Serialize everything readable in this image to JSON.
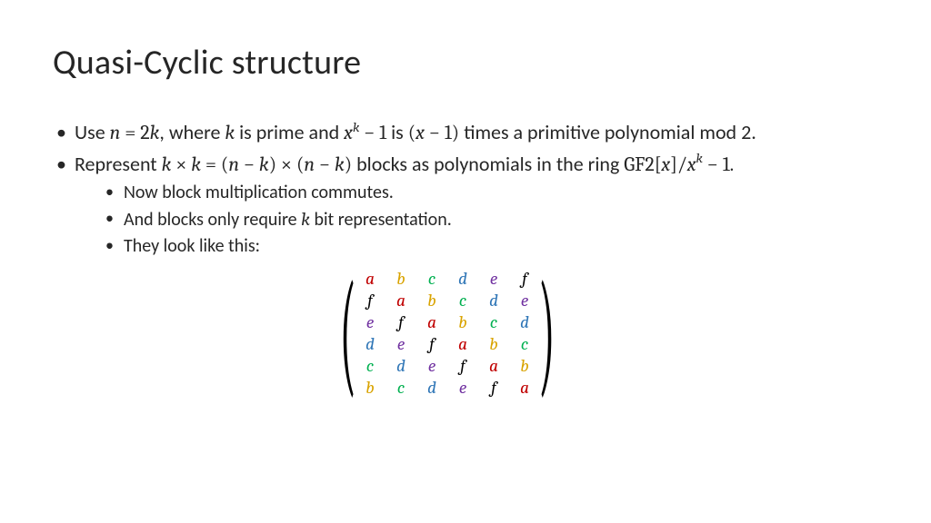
{
  "title": "Quasi-Cyclic structure",
  "bullet1": {
    "pre": "Use ",
    "n": "n",
    "eq": " = ",
    "two": " 2",
    "k": "k",
    "mid1": ", where ",
    "k2": "k",
    "mid2": " is prime and ",
    "x": "x",
    "supk": "k",
    "minus1": " − 1",
    "mid3": " is ",
    "lp": "(",
    "x2": "x",
    "minus1b": " − 1)",
    "tail": " times a primitive polynomial mod 2."
  },
  "bullet2": {
    "pre": "Represent ",
    "k": "k",
    "times": " × ",
    "k2": "k",
    "eq": " = (",
    "n": "n",
    "minus": " − ",
    "k3": "k",
    "mid": ") × (",
    "n2": "n",
    "minus2": " − ",
    "k4": "k",
    "rp": ")",
    "tail": " blocks as polynomials in the ring ",
    "gf2": "GF2[",
    "x": "x",
    "rb": "]/",
    "x2": "x",
    "supk": "k",
    "minus1": " − 1."
  },
  "sub1": "Now block multiplication commutes.",
  "sub2": {
    "pre": "And blocks only require ",
    "k": "k",
    "tail": " bit representation."
  },
  "sub3": "They look like this:",
  "matrix": {
    "letters": [
      "a",
      "b",
      "c",
      "d",
      "e",
      "f"
    ],
    "rows": [
      [
        "a",
        "b",
        "c",
        "d",
        "e",
        "f"
      ],
      [
        "f",
        "a",
        "b",
        "c",
        "d",
        "e"
      ],
      [
        "e",
        "f",
        "a",
        "b",
        "c",
        "d"
      ],
      [
        "d",
        "e",
        "f",
        "a",
        "b",
        "c"
      ],
      [
        "c",
        "d",
        "e",
        "f",
        "a",
        "b"
      ],
      [
        "b",
        "c",
        "d",
        "e",
        "f",
        "a"
      ]
    ],
    "colors": {
      "a": "#c00000",
      "b": "#d9a300",
      "c": "#00b050",
      "d": "#2e75b6",
      "e": "#7030a0",
      "f": "#000000"
    }
  }
}
